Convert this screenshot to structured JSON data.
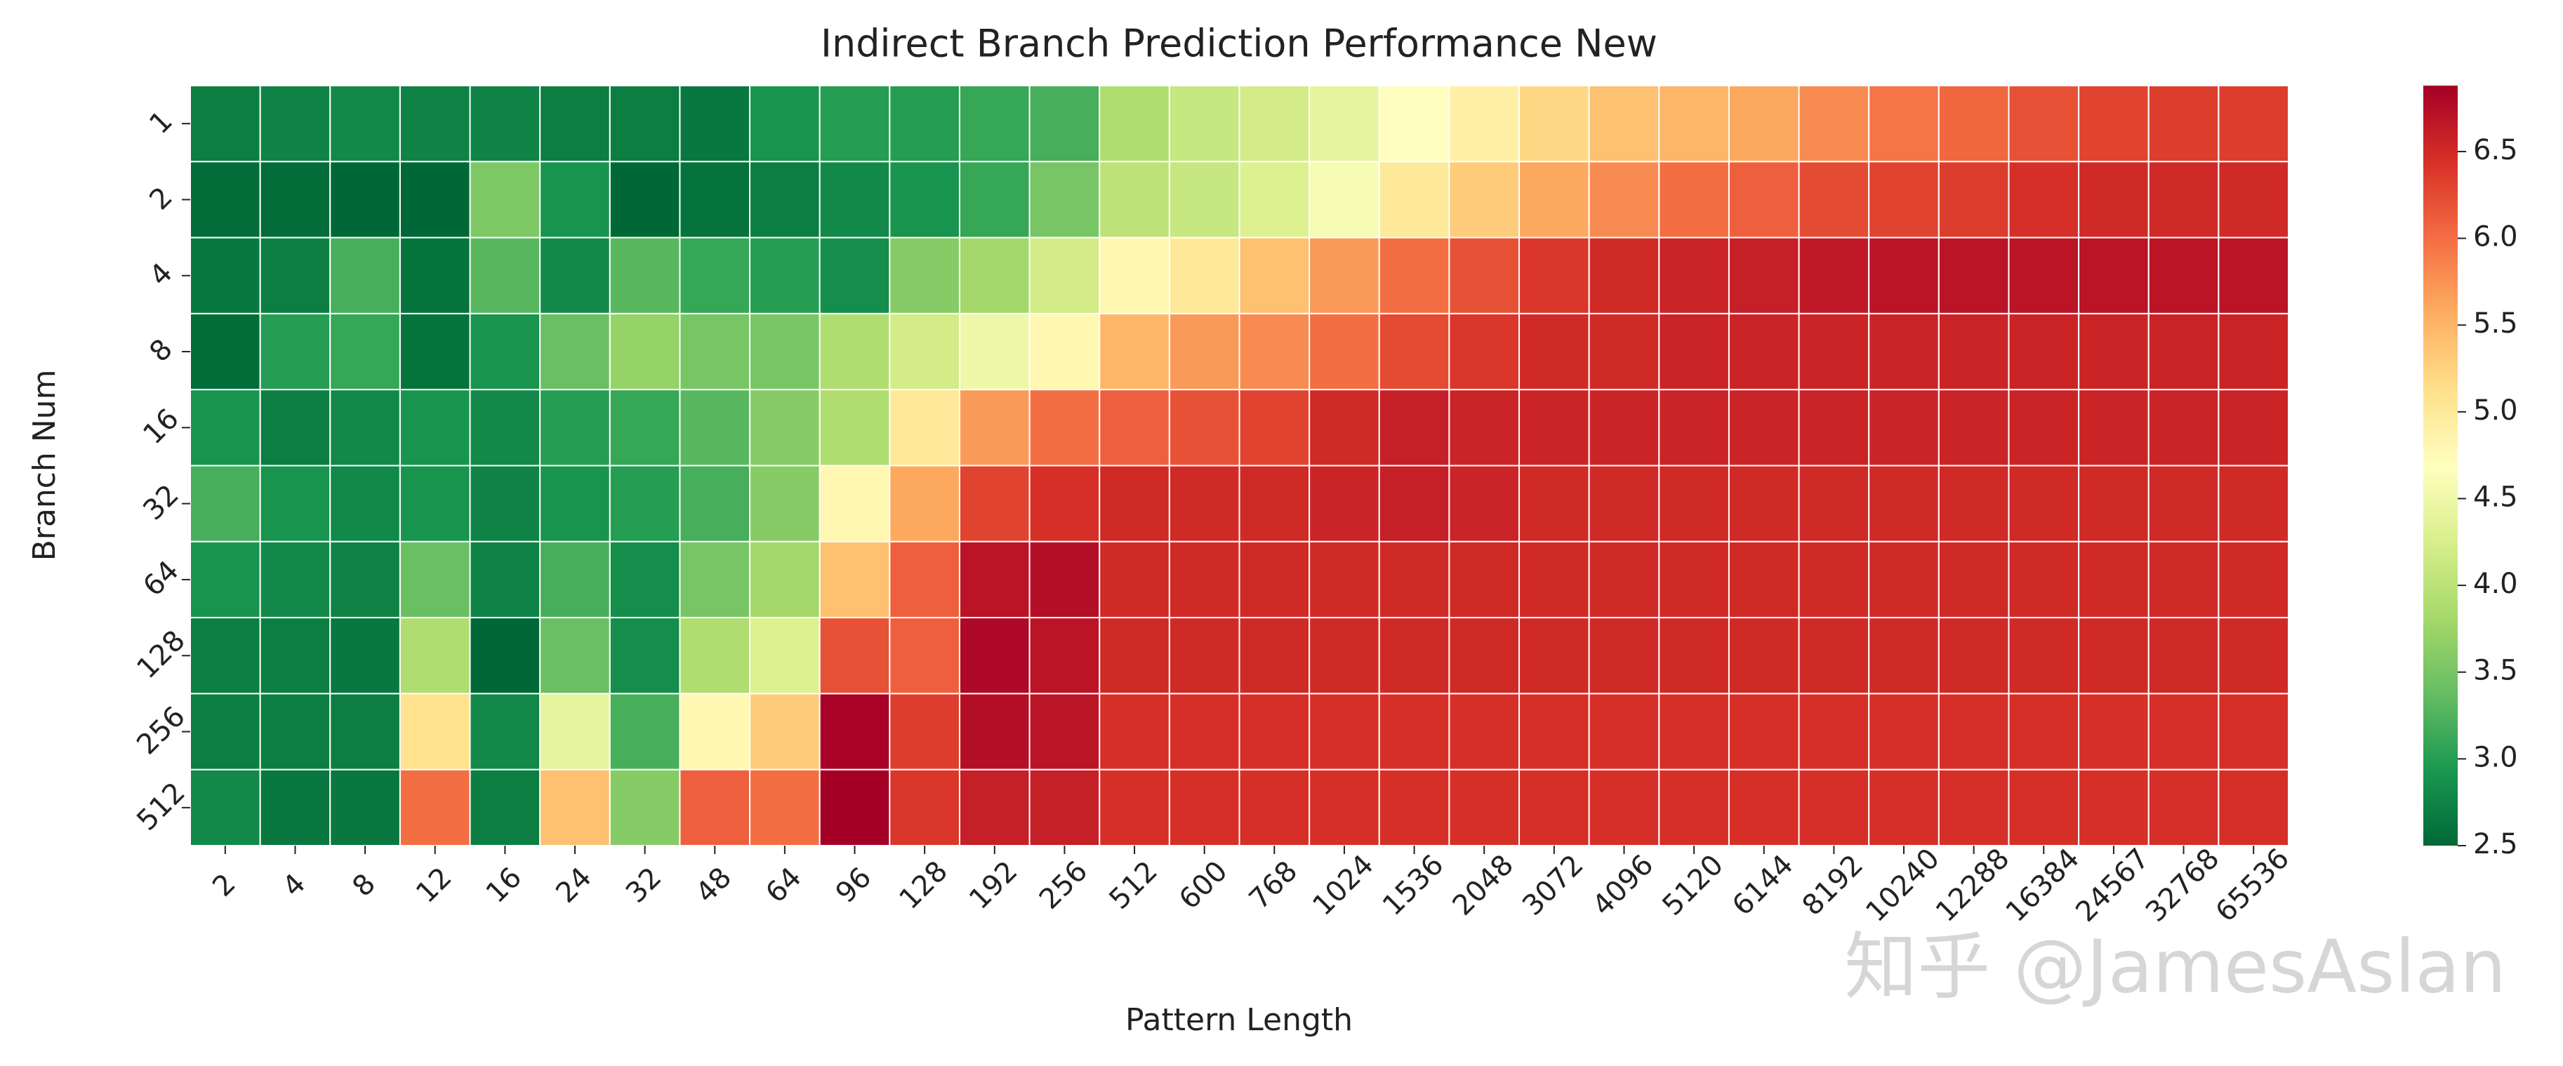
{
  "chart_data": {
    "type": "heatmap",
    "title": "Indirect Branch Prediction Performance New",
    "xlabel": "Pattern Length",
    "ylabel": "Branch Num",
    "x_categories": [
      "2",
      "4",
      "8",
      "12",
      "16",
      "24",
      "32",
      "48",
      "64",
      "96",
      "128",
      "192",
      "256",
      "512",
      "600",
      "768",
      "1024",
      "1536",
      "2048",
      "3072",
      "4096",
      "5120",
      "6144",
      "8192",
      "10240",
      "12288",
      "16384",
      "24567",
      "32768",
      "65536"
    ],
    "y_categories": [
      "1",
      "2",
      "4",
      "8",
      "16",
      "32",
      "64",
      "128",
      "256",
      "512"
    ],
    "values": [
      [
        2.7,
        2.75,
        2.8,
        2.75,
        2.75,
        2.7,
        2.7,
        2.65,
        2.9,
        3.0,
        3.0,
        3.1,
        3.2,
        3.9,
        4.1,
        4.2,
        4.4,
        4.7,
        4.9,
        5.2,
        5.4,
        5.5,
        5.6,
        5.8,
        5.95,
        6.05,
        6.2,
        6.3,
        6.35,
        6.35
      ],
      [
        2.55,
        2.55,
        2.5,
        2.5,
        3.55,
        2.9,
        2.5,
        2.6,
        2.7,
        2.8,
        2.9,
        3.1,
        3.5,
        4.0,
        4.1,
        4.3,
        4.6,
        5.0,
        5.3,
        5.6,
        5.8,
        6.0,
        6.1,
        6.25,
        6.3,
        6.35,
        6.45,
        6.5,
        6.5,
        6.5
      ],
      [
        2.65,
        2.7,
        3.2,
        2.6,
        3.3,
        2.8,
        3.3,
        3.1,
        3.0,
        2.85,
        3.6,
        3.8,
        4.2,
        4.8,
        5.0,
        5.4,
        5.7,
        6.0,
        6.2,
        6.4,
        6.5,
        6.55,
        6.6,
        6.65,
        6.7,
        6.7,
        6.7,
        6.7,
        6.7,
        6.7
      ],
      [
        2.55,
        3.0,
        3.1,
        2.6,
        2.9,
        3.4,
        3.7,
        3.5,
        3.5,
        3.9,
        4.2,
        4.5,
        4.8,
        5.5,
        5.7,
        5.8,
        6.0,
        6.25,
        6.4,
        6.5,
        6.5,
        6.55,
        6.55,
        6.55,
        6.55,
        6.55,
        6.55,
        6.55,
        6.55,
        6.55
      ],
      [
        2.9,
        2.7,
        2.8,
        2.9,
        2.8,
        3.0,
        3.1,
        3.3,
        3.6,
        3.9,
        5.0,
        5.7,
        6.0,
        6.1,
        6.2,
        6.3,
        6.5,
        6.6,
        6.55,
        6.55,
        6.55,
        6.55,
        6.55,
        6.55,
        6.55,
        6.55,
        6.55,
        6.55,
        6.55,
        6.55
      ],
      [
        3.2,
        2.9,
        2.8,
        2.9,
        2.75,
        2.9,
        3.0,
        3.2,
        3.6,
        4.8,
        5.6,
        6.3,
        6.45,
        6.5,
        6.5,
        6.5,
        6.55,
        6.6,
        6.55,
        6.5,
        6.5,
        6.5,
        6.5,
        6.5,
        6.5,
        6.5,
        6.5,
        6.5,
        6.5,
        6.5
      ],
      [
        2.9,
        2.8,
        2.75,
        3.4,
        2.75,
        3.2,
        2.85,
        3.5,
        3.8,
        5.4,
        6.1,
        6.7,
        6.75,
        6.5,
        6.5,
        6.5,
        6.5,
        6.5,
        6.5,
        6.5,
        6.5,
        6.5,
        6.5,
        6.5,
        6.5,
        6.5,
        6.5,
        6.5,
        6.5,
        6.5
      ],
      [
        2.7,
        2.7,
        2.65,
        3.9,
        2.5,
        3.4,
        2.85,
        3.9,
        4.3,
        6.2,
        6.1,
        6.8,
        6.7,
        6.5,
        6.5,
        6.5,
        6.5,
        6.5,
        6.5,
        6.5,
        6.5,
        6.5,
        6.5,
        6.5,
        6.5,
        6.5,
        6.5,
        6.5,
        6.5,
        6.5
      ],
      [
        2.7,
        2.7,
        2.7,
        5.1,
        2.8,
        4.4,
        3.2,
        4.8,
        5.3,
        6.85,
        6.35,
        6.75,
        6.7,
        6.45,
        6.45,
        6.45,
        6.45,
        6.45,
        6.45,
        6.45,
        6.45,
        6.45,
        6.45,
        6.45,
        6.45,
        6.45,
        6.45,
        6.45,
        6.45,
        6.45
      ],
      [
        2.8,
        2.65,
        2.65,
        6.0,
        2.7,
        5.4,
        3.6,
        6.1,
        6.0,
        6.88,
        6.4,
        6.6,
        6.6,
        6.45,
        6.45,
        6.45,
        6.45,
        6.45,
        6.45,
        6.45,
        6.45,
        6.45,
        6.45,
        6.45,
        6.45,
        6.45,
        6.45,
        6.45,
        6.45,
        6.45
      ]
    ],
    "clim": [
      2.5,
      6.88
    ],
    "cticks": [
      2.5,
      {
        "value": 3,
        "label": "3.0"
      },
      3.5,
      {
        "value": 4,
        "label": "4.0"
      },
      4.5,
      {
        "value": 5,
        "label": "5.0"
      },
      5.5,
      {
        "value": 6,
        "label": "6.0"
      },
      6.5
    ],
    "colormap": [
      "#006837",
      "#1a9850",
      "#66bd63",
      "#a6d96a",
      "#d9ef8b",
      "#ffffbf",
      "#fee08b",
      "#fdae61",
      "#f46d43",
      "#d73027",
      "#a50026"
    ],
    "watermark": "知乎 @JamesAslan"
  }
}
